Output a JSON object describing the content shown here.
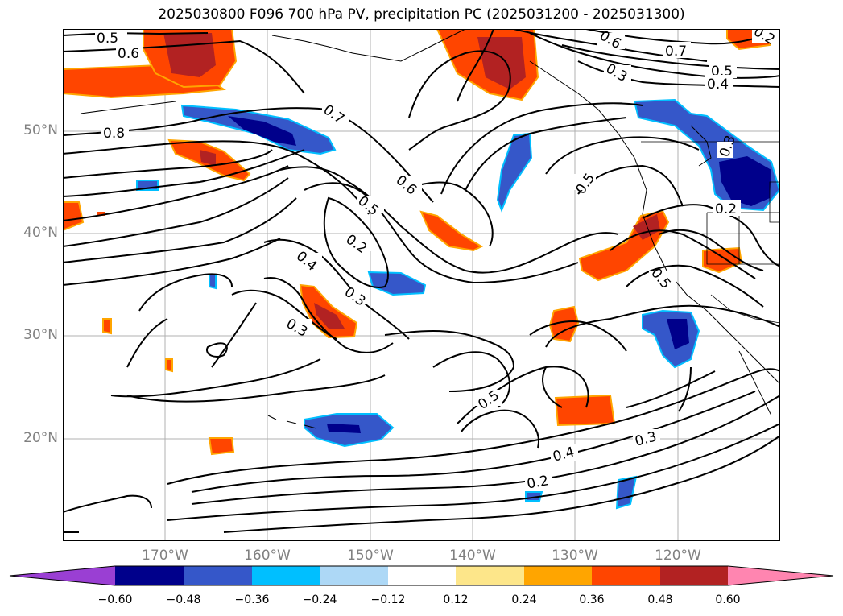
{
  "title": "2025030800 F096 700 hPa PV, precipitation PC (2025031200 - 2025031300)",
  "lat_labels": [
    "50°N",
    "40°N",
    "30°N",
    "20°N"
  ],
  "lon_labels": [
    "170°W",
    "160°W",
    "150°W",
    "140°W",
    "130°W",
    "120°W"
  ],
  "contour_labels": [
    "0.5",
    "0.6",
    "0.8",
    "0.7",
    "0.6",
    "0.5",
    "0.2",
    "0.4",
    "0.3",
    "0.3",
    "0.6",
    "0.7",
    "0.3",
    "0.5",
    "0.4",
    "0.5",
    "0.2",
    "0.5",
    "0.5",
    "0.4",
    "0.3",
    "0.2",
    "0.3",
    "0.2"
  ],
  "colorbar": {
    "ticks": [
      "−0.60",
      "−0.48",
      "−0.36",
      "−0.24",
      "−0.12",
      "0.12",
      "0.24",
      "0.36",
      "0.48",
      "0.60"
    ],
    "colors": [
      "#9a3fd3",
      "#00008b",
      "#3557c9",
      "#00bfff",
      "#add8f6",
      "#ffffff",
      "#fde68a",
      "#ffa500",
      "#ff4500",
      "#b22222",
      "#ff85b0"
    ]
  }
}
